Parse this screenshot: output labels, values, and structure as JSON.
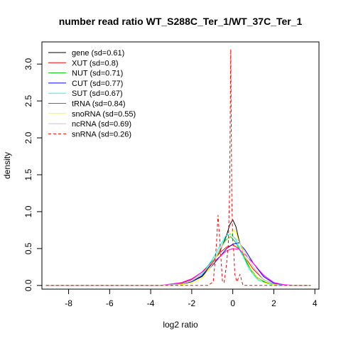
{
  "chart_data": {
    "type": "line",
    "title": "number read ratio WT_S288C_Ter_1/WT_37C_Ter_1",
    "xlabel": "log2 ratio",
    "ylabel": "density",
    "xlim": [
      -9.3,
      4.2
    ],
    "ylim": [
      -0.05,
      3.3
    ],
    "x_ticks": [
      -8,
      -6,
      -4,
      -2,
      0,
      2,
      4
    ],
    "y_ticks": [
      0.0,
      0.5,
      1.0,
      1.5,
      2.0,
      2.5,
      3.0
    ],
    "x_tick_labels": [
      "-8",
      "-6",
      "-4",
      "-2",
      "0",
      "2",
      "4"
    ],
    "y_tick_labels": [
      "0.0",
      "0.5",
      "1.0",
      "1.5",
      "2.0",
      "2.5",
      "3.0"
    ],
    "legend_position": "top-left",
    "series": [
      {
        "name": "gene (sd=0.61)",
        "color": "#000000",
        "dash": "solid",
        "points": [
          [
            -9.1,
            0
          ],
          [
            -3.5,
            0
          ],
          [
            -3.0,
            0.01
          ],
          [
            -2.5,
            0.02
          ],
          [
            -2.0,
            0.05
          ],
          [
            -1.5,
            0.13
          ],
          [
            -1.0,
            0.3
          ],
          [
            -0.6,
            0.48
          ],
          [
            -0.3,
            0.68
          ],
          [
            -0.15,
            0.82
          ],
          [
            0.0,
            0.89
          ],
          [
            0.15,
            0.8
          ],
          [
            0.3,
            0.62
          ],
          [
            0.6,
            0.37
          ],
          [
            1.0,
            0.15
          ],
          [
            1.5,
            0.05
          ],
          [
            2.0,
            0.01
          ],
          [
            2.5,
            0
          ],
          [
            3.8,
            0
          ]
        ]
      },
      {
        "name": "XUT (sd=0.8)",
        "color": "#ff0000",
        "dash": "solid",
        "points": [
          [
            -9.1,
            0
          ],
          [
            -3.5,
            0
          ],
          [
            -3.0,
            0.01
          ],
          [
            -2.5,
            0.03
          ],
          [
            -2.0,
            0.08
          ],
          [
            -1.5,
            0.18
          ],
          [
            -1.0,
            0.33
          ],
          [
            -0.6,
            0.45
          ],
          [
            -0.3,
            0.52
          ],
          [
            0.0,
            0.55
          ],
          [
            0.3,
            0.5
          ],
          [
            0.6,
            0.38
          ],
          [
            1.0,
            0.22
          ],
          [
            1.5,
            0.08
          ],
          [
            2.0,
            0.02
          ],
          [
            2.5,
            0
          ],
          [
            3.8,
            0
          ]
        ]
      },
      {
        "name": "NUT (sd=0.71)",
        "color": "#00cc00",
        "dash": "solid",
        "points": [
          [
            -9.1,
            0
          ],
          [
            -3.5,
            0
          ],
          [
            -3.0,
            0.01
          ],
          [
            -2.5,
            0.02
          ],
          [
            -2.0,
            0.06
          ],
          [
            -1.5,
            0.15
          ],
          [
            -1.0,
            0.32
          ],
          [
            -0.6,
            0.5
          ],
          [
            -0.35,
            0.62
          ],
          [
            -0.1,
            0.66
          ],
          [
            0.15,
            0.58
          ],
          [
            0.4,
            0.45
          ],
          [
            0.8,
            0.25
          ],
          [
            1.2,
            0.1
          ],
          [
            1.7,
            0.03
          ],
          [
            2.2,
            0.01
          ],
          [
            2.7,
            0
          ],
          [
            3.8,
            0
          ]
        ]
      },
      {
        "name": "CUT (sd=0.77)",
        "color": "#0000ff",
        "dash": "solid",
        "points": [
          [
            -9.1,
            0
          ],
          [
            -3.5,
            0
          ],
          [
            -3.0,
            0.01
          ],
          [
            -2.5,
            0.02
          ],
          [
            -2.0,
            0.05
          ],
          [
            -1.5,
            0.12
          ],
          [
            -1.0,
            0.27
          ],
          [
            -0.6,
            0.4
          ],
          [
            -0.3,
            0.5
          ],
          [
            0.0,
            0.56
          ],
          [
            0.3,
            0.58
          ],
          [
            0.6,
            0.48
          ],
          [
            1.0,
            0.3
          ],
          [
            1.5,
            0.12
          ],
          [
            2.0,
            0.03
          ],
          [
            2.5,
            0
          ],
          [
            3.8,
            0
          ]
        ]
      },
      {
        "name": "SUT (sd=0.67)",
        "color": "#00ffff",
        "dash": "solid",
        "points": [
          [
            -9.1,
            0
          ],
          [
            -3.5,
            0
          ],
          [
            -3.0,
            0.01
          ],
          [
            -2.5,
            0.02
          ],
          [
            -2.0,
            0.06
          ],
          [
            -1.5,
            0.16
          ],
          [
            -1.0,
            0.35
          ],
          [
            -0.6,
            0.55
          ],
          [
            -0.35,
            0.67
          ],
          [
            -0.1,
            0.7
          ],
          [
            0.15,
            0.62
          ],
          [
            0.4,
            0.46
          ],
          [
            0.8,
            0.22
          ],
          [
            1.2,
            0.08
          ],
          [
            1.7,
            0.02
          ],
          [
            2.2,
            0
          ],
          [
            3.8,
            0
          ]
        ]
      },
      {
        "name": "tRNA (sd=0.84)",
        "color": "#ff00ff",
        "dash": "solid",
        "points": [
          [
            -9.1,
            0
          ],
          [
            -3.5,
            0
          ],
          [
            -3.0,
            0.02
          ],
          [
            -2.5,
            0.04
          ],
          [
            -2.0,
            0.09
          ],
          [
            -1.5,
            0.18
          ],
          [
            -1.0,
            0.3
          ],
          [
            -0.6,
            0.4
          ],
          [
            -0.3,
            0.47
          ],
          [
            0.0,
            0.5
          ],
          [
            0.3,
            0.49
          ],
          [
            0.6,
            0.42
          ],
          [
            1.0,
            0.3
          ],
          [
            1.5,
            0.14
          ],
          [
            2.0,
            0.04
          ],
          [
            2.5,
            0.01
          ],
          [
            3.0,
            0
          ],
          [
            3.8,
            0
          ]
        ]
      },
      {
        "name": "snoRNA (sd=0.55)",
        "color": "#ffff00",
        "dash": "solid",
        "points": [
          [
            -9.1,
            0
          ],
          [
            -3.0,
            0
          ],
          [
            -2.5,
            0.01
          ],
          [
            -2.0,
            0.03
          ],
          [
            -1.5,
            0.1
          ],
          [
            -1.0,
            0.28
          ],
          [
            -0.6,
            0.5
          ],
          [
            -0.3,
            0.62
          ],
          [
            -0.1,
            0.68
          ],
          [
            0.05,
            0.75
          ],
          [
            0.15,
            0.72
          ],
          [
            0.3,
            0.6
          ],
          [
            0.6,
            0.38
          ],
          [
            1.0,
            0.16
          ],
          [
            1.5,
            0.04
          ],
          [
            2.0,
            0.01
          ],
          [
            2.5,
            0
          ],
          [
            3.8,
            0
          ]
        ]
      },
      {
        "name": "ncRNA (sd=0.69)",
        "color": "#c8c8c8",
        "dash": "solid",
        "points": [
          [
            -9.1,
            0
          ],
          [
            -3.5,
            0
          ],
          [
            -3.0,
            0.01
          ],
          [
            -2.5,
            0.02
          ],
          [
            -2.0,
            0.06
          ],
          [
            -1.5,
            0.15
          ],
          [
            -1.0,
            0.32
          ],
          [
            -0.6,
            0.5
          ],
          [
            -0.3,
            0.62
          ],
          [
            0.0,
            0.67
          ],
          [
            0.3,
            0.6
          ],
          [
            0.6,
            0.45
          ],
          [
            1.0,
            0.25
          ],
          [
            1.5,
            0.08
          ],
          [
            2.0,
            0.02
          ],
          [
            2.5,
            0
          ],
          [
            3.8,
            0
          ]
        ]
      },
      {
        "name": "snRNA (sd=0.26)",
        "color": "#ff0000",
        "dash": "dashed",
        "points": [
          [
            -9.1,
            0
          ],
          [
            -1.2,
            0
          ],
          [
            -0.95,
            0.05
          ],
          [
            -0.8,
            0.55
          ],
          [
            -0.72,
            0.95
          ],
          [
            -0.62,
            0.55
          ],
          [
            -0.5,
            0.05
          ],
          [
            -0.42,
            0.04
          ],
          [
            -0.3,
            0.3
          ],
          [
            -0.22,
            0.55
          ],
          [
            -0.15,
            1.3
          ],
          [
            -0.1,
            3.2
          ],
          [
            -0.05,
            1.2
          ],
          [
            0.0,
            0.6
          ],
          [
            0.05,
            0.45
          ],
          [
            0.1,
            0.15
          ],
          [
            0.2,
            0.05
          ],
          [
            0.35,
            0.15
          ],
          [
            0.5,
            0.0
          ],
          [
            3.8,
            0
          ]
        ]
      }
    ]
  }
}
